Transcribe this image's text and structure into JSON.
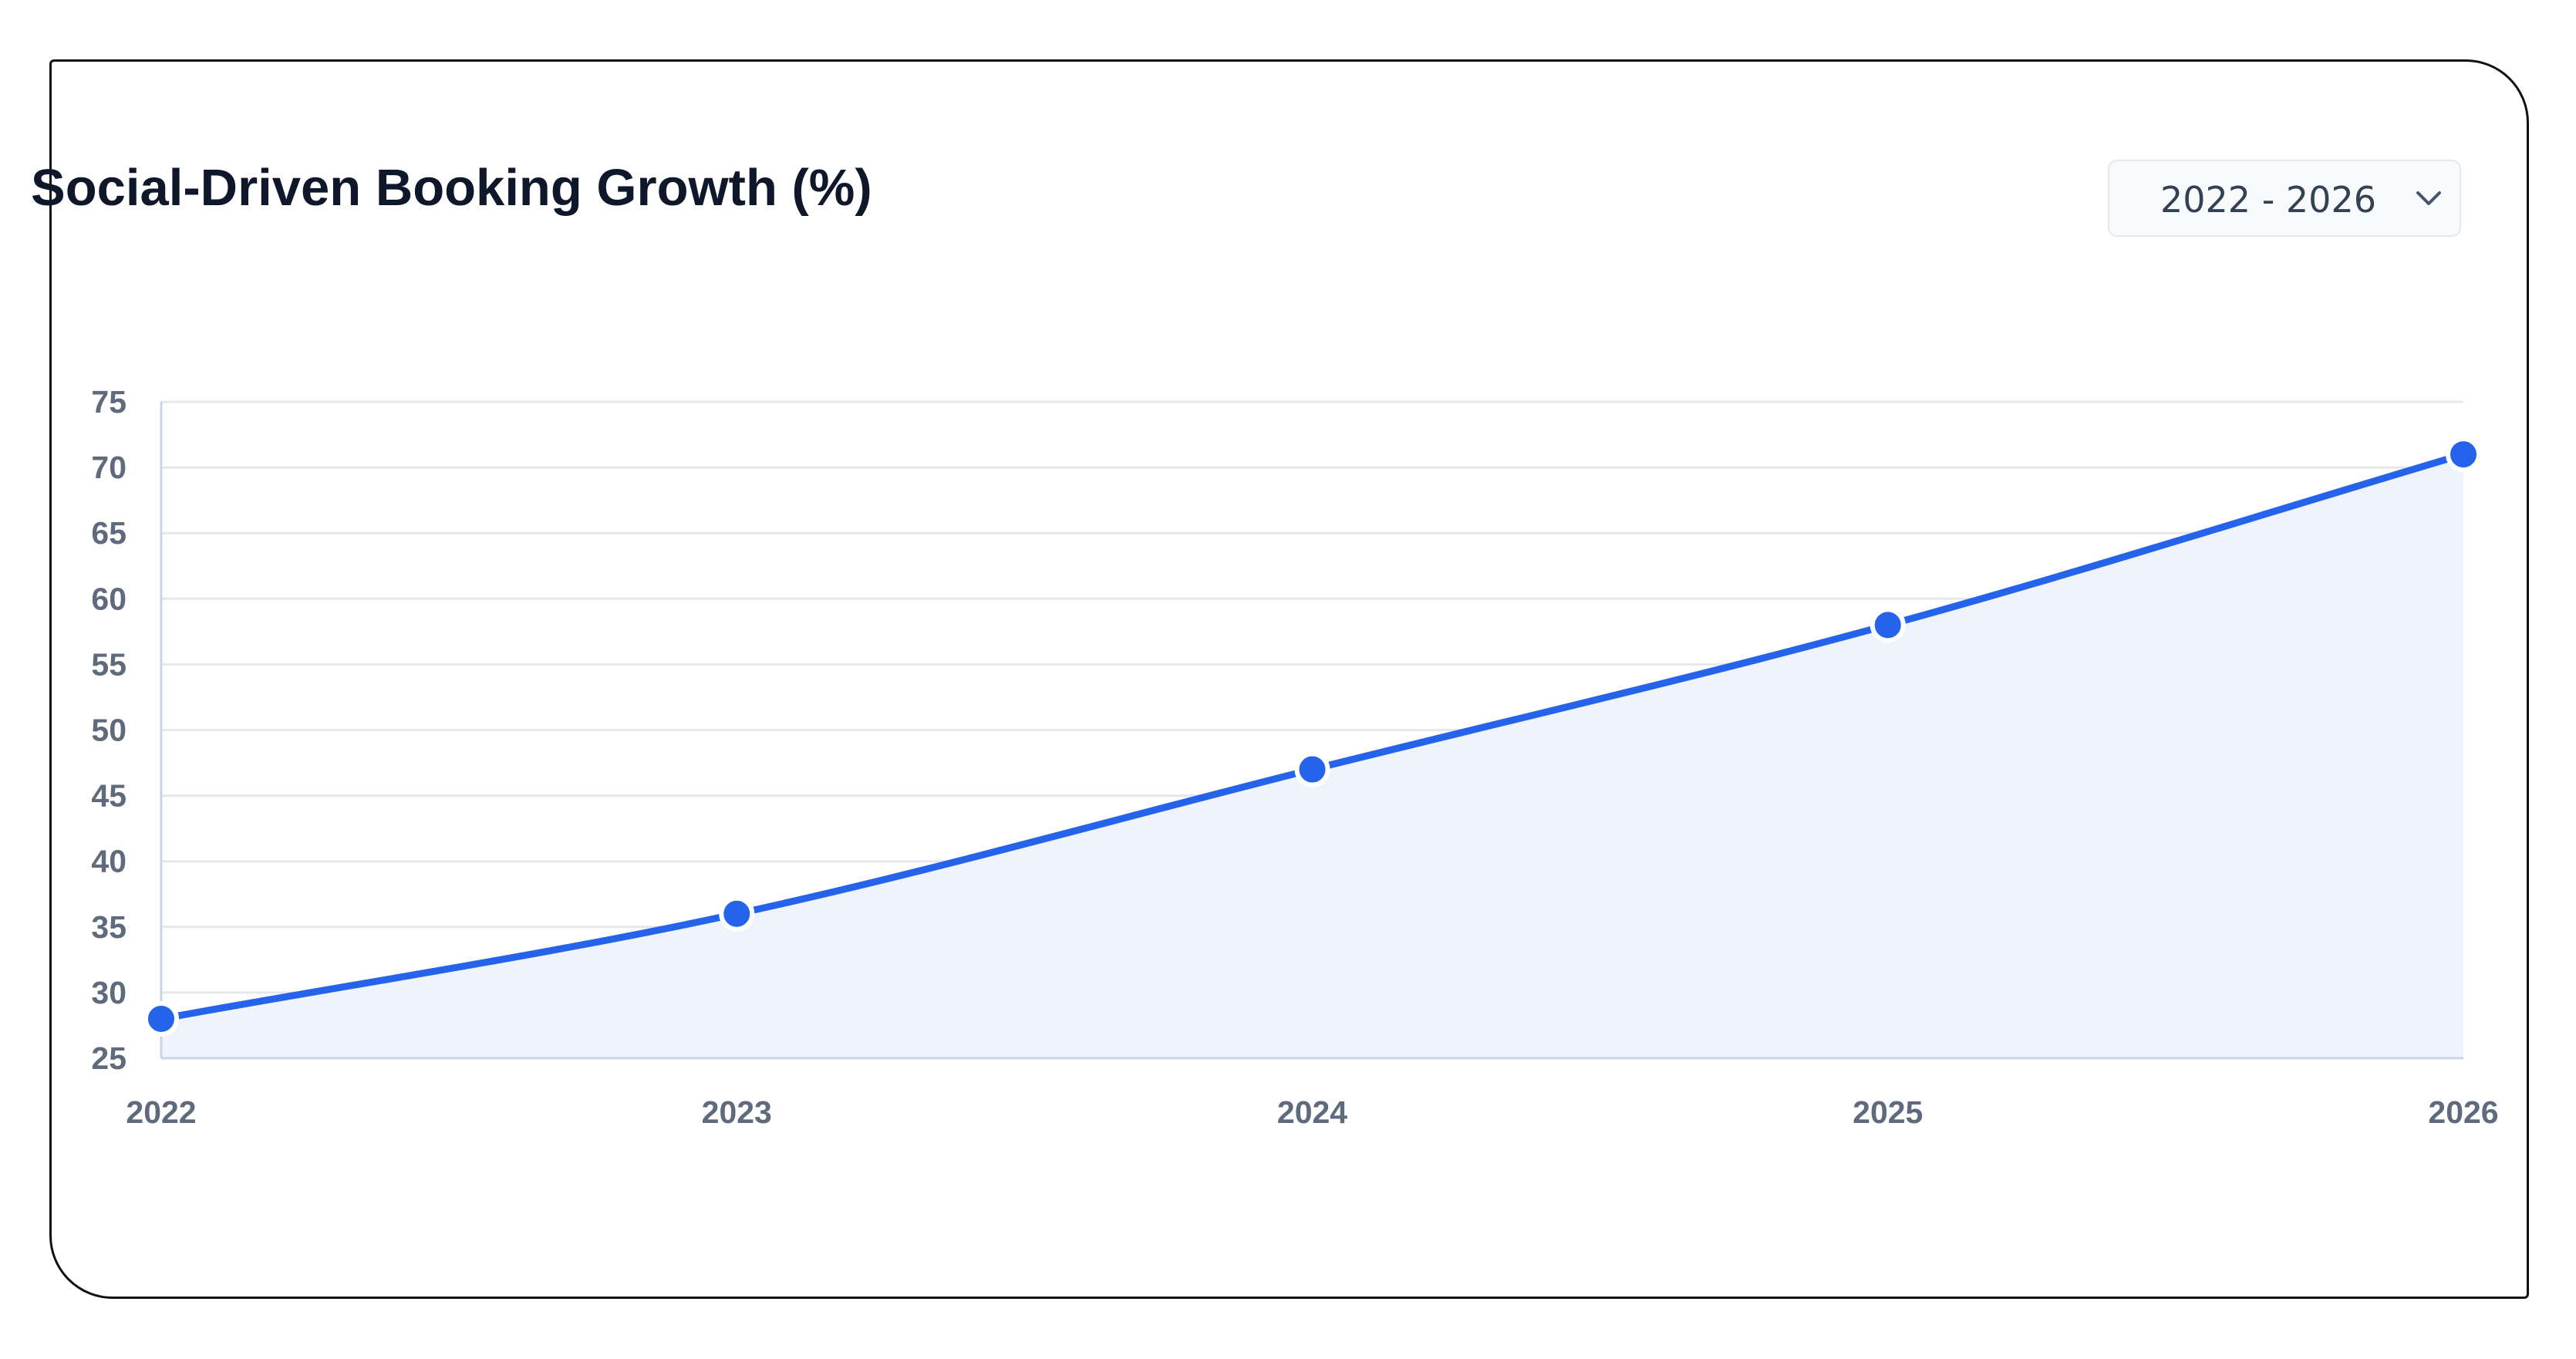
{
  "header": {
    "title": "Social-Driven Booking Growth (%)",
    "range_select": {
      "value": "2022 - 2026",
      "icon": "chevron-down-icon"
    }
  },
  "colors": {
    "line": "#2563eb",
    "area_fill": "#eef3fd",
    "grid": "#e5e7eb",
    "axis": "#cbd5e1",
    "tick_text": "#5f6b7d",
    "title_text": "#0f172a"
  },
  "chart_data": {
    "type": "area",
    "title": "Social-Driven Booking Growth (%)",
    "xlabel": "",
    "ylabel": "",
    "x": [
      "2022",
      "2023",
      "2024",
      "2025",
      "2026"
    ],
    "series": [
      {
        "values": [
          28,
          36,
          47,
          58,
          71
        ]
      }
    ],
    "ylim": [
      25,
      75
    ],
    "yticks": [
      25,
      30,
      35,
      40,
      45,
      50,
      55,
      60,
      65,
      70,
      75
    ],
    "grid": true,
    "smooth": true,
    "markers": true,
    "legend": "none"
  }
}
